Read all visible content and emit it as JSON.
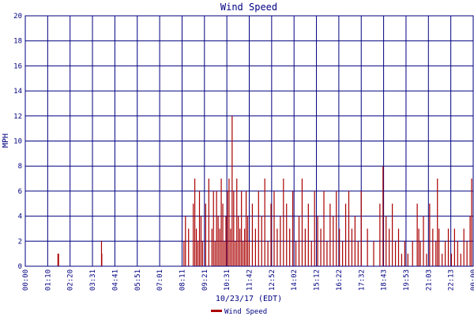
{
  "chart_data": {
    "type": "bar",
    "title": "Wind Speed",
    "xlabel": "10/23/17 (EDT)",
    "ylabel": "MPH",
    "ylim": [
      0,
      20
    ],
    "yticks": [
      "0",
      "2",
      "4",
      "6",
      "8",
      "10",
      "12",
      "14",
      "16",
      "18",
      "20"
    ],
    "xticks": [
      "00:00",
      "01:10",
      "02:20",
      "03:31",
      "04:41",
      "05:51",
      "07:01",
      "08:11",
      "09:21",
      "10:31",
      "11:42",
      "12:52",
      "14:02",
      "15:12",
      "16:22",
      "17:32",
      "18:43",
      "19:53",
      "21:03",
      "22:13",
      "00:00"
    ],
    "grid": true,
    "legend": "bottom-center",
    "colors": {
      "series": "#aa0000",
      "grid": "#000080",
      "text": "#000080"
    },
    "series": [
      {
        "name": "Wind Speed",
        "x": [
          "01:45",
          "01:47",
          "04:05",
          "04:06",
          "08:30",
          "08:35",
          "08:45",
          "09:00",
          "09:05",
          "09:10",
          "09:15",
          "09:20",
          "09:25",
          "09:30",
          "09:40",
          "09:50",
          "10:00",
          "10:05",
          "10:10",
          "10:15",
          "10:20",
          "10:25",
          "10:30",
          "10:35",
          "10:40",
          "10:45",
          "10:50",
          "10:55",
          "11:00",
          "11:05",
          "11:10",
          "11:15",
          "11:20",
          "11:25",
          "11:30",
          "11:35",
          "11:40",
          "11:45",
          "11:50",
          "11:55",
          "12:00",
          "12:10",
          "12:20",
          "12:30",
          "12:40",
          "12:50",
          "13:00",
          "13:10",
          "13:20",
          "13:30",
          "13:40",
          "13:50",
          "14:00",
          "14:10",
          "14:20",
          "14:30",
          "14:40",
          "14:50",
          "15:00",
          "15:10",
          "15:20",
          "15:30",
          "15:40",
          "15:50",
          "16:00",
          "16:10",
          "16:20",
          "16:30",
          "16:40",
          "16:50",
          "17:00",
          "17:10",
          "17:20",
          "17:30",
          "17:40",
          "17:50",
          "18:00",
          "18:20",
          "18:40",
          "19:00",
          "19:10",
          "19:20",
          "19:30",
          "19:40",
          "19:50",
          "20:00",
          "20:10",
          "20:20",
          "20:30",
          "20:45",
          "21:00",
          "21:05",
          "21:10",
          "21:20",
          "21:30",
          "21:40",
          "21:50",
          "22:00",
          "22:05",
          "22:10",
          "22:20",
          "22:30",
          "22:40",
          "22:50",
          "23:00",
          "23:10",
          "23:20",
          "23:30",
          "23:40",
          "23:50",
          "23:55"
        ],
        "values": [
          1,
          1,
          2,
          1,
          2,
          4,
          3,
          5,
          7,
          3,
          2,
          6,
          4,
          2,
          5,
          7,
          3,
          6,
          2,
          6,
          4,
          3,
          7,
          5,
          2,
          4,
          6,
          7,
          3,
          12,
          6,
          2,
          7,
          4,
          3,
          6,
          2,
          3,
          6,
          4,
          2,
          5,
          3,
          6,
          4,
          7,
          2,
          5,
          6,
          3,
          4,
          7,
          5,
          3,
          6,
          2,
          4,
          7,
          3,
          5,
          2,
          6,
          4,
          3,
          6,
          2,
          5,
          4,
          6,
          3,
          2,
          5,
          6,
          3,
          4,
          2,
          6,
          3,
          2,
          5,
          8,
          4,
          3,
          5,
          2,
          3,
          1,
          2,
          1,
          2,
          5,
          3,
          2,
          4,
          1,
          5,
          3,
          2,
          7,
          3,
          1,
          2,
          3,
          1,
          3,
          2,
          1,
          3,
          2,
          4,
          7
        ]
      }
    ]
  }
}
